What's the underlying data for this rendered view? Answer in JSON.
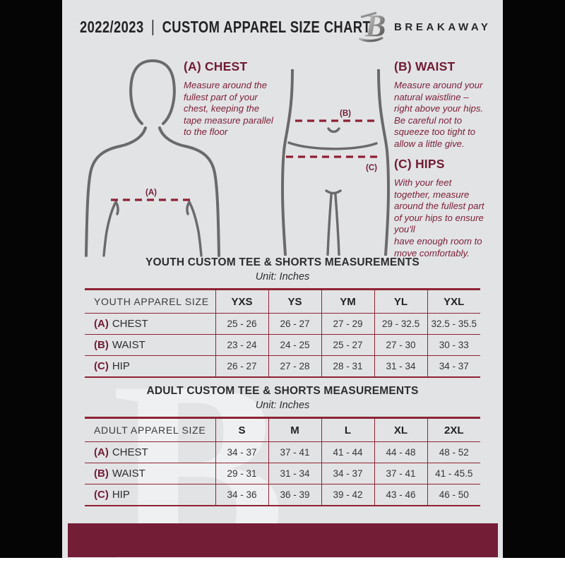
{
  "header": {
    "year": "2022/2023",
    "divider": "|",
    "title": "CUSTOM APPAREL SIZE CHART",
    "brand": "BREAKAWAY",
    "logo_icon": "breakaway-b-logo"
  },
  "instructions": [
    {
      "id": "A",
      "heading": "(A) CHEST",
      "body": "Measure around the\nfullest part of your\nchest, keeping the\ntape measure parallel\nto the floor"
    },
    {
      "id": "B",
      "heading": "(B) WAIST",
      "body": "Measure around your\nnatural waistline –\nright above your hips.\nBe careful not to\nsqueeze too tight to\nallow a little give."
    },
    {
      "id": "C",
      "heading": "(C) HIPS",
      "body": "With your feet\ntogether, measure\naround the fullest part\nof your hips to ensure\nyou'll\nhave enough room to\nmove comfortably."
    }
  ],
  "diagram_labels": {
    "chest": "(A)",
    "waist": "(B)",
    "hip": "(C)"
  },
  "tables": [
    {
      "title": "YOUTH CUSTOM TEE & SHORTS MEASUREMENTS",
      "unit": "Unit: Inches",
      "header_label": "YOUTH APPAREL SIZE",
      "sizes": [
        "YXS",
        "YS",
        "YM",
        "YL",
        "YXL"
      ],
      "rows": [
        {
          "key": "(A)",
          "label": "CHEST",
          "values": [
            "25 - 26",
            "26 - 27",
            "27 - 29",
            "29 - 32.5",
            "32.5 - 35.5"
          ]
        },
        {
          "key": "(B)",
          "label": "WAIST",
          "values": [
            "23 - 24",
            "24 - 25",
            "25 - 27",
            "27 - 30",
            "30 - 33"
          ]
        },
        {
          "key": "(C)",
          "label": "HIP",
          "values": [
            "26 - 27",
            "27 - 28",
            "28 - 31",
            "31 - 34",
            "34 - 37"
          ]
        }
      ]
    },
    {
      "title": "ADULT CUSTOM TEE & SHORTS MEASUREMENTS",
      "unit": "Unit: Inches",
      "header_label": "ADULT APPAREL SIZE",
      "sizes": [
        "S",
        "M",
        "L",
        "XL",
        "2XL"
      ],
      "rows": [
        {
          "key": "(A)",
          "label": "CHEST",
          "values": [
            "34 - 37",
            "37 - 41",
            "41 - 44",
            "44 - 48",
            "48 - 52"
          ]
        },
        {
          "key": "(B)",
          "label": "WAIST",
          "values": [
            "29 - 31",
            "31 - 34",
            "34 - 37",
            "37 - 41",
            "41 - 45.5"
          ]
        },
        {
          "key": "(C)",
          "label": "HIP",
          "values": [
            "34 - 36",
            "36 - 39",
            "39 - 42",
            "43 - 46",
            "46 - 50"
          ]
        }
      ]
    }
  ],
  "watermark": "B",
  "colors": {
    "maroon_heading": "#701c34",
    "maroon_body": "#7d2038",
    "dash_line": "#8e2034",
    "table_border": "#8e2334",
    "footer_bar": "#741d36",
    "page_bg": "#e2e3e5",
    "ink": "#232325",
    "figure_stroke": "#6a6a6c"
  }
}
